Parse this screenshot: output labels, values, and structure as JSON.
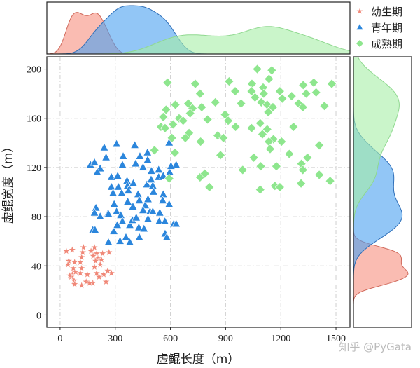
{
  "chart_data": {
    "type": "scatter",
    "xlabel": "虚鲲长度（m）",
    "ylabel": "虚鲲宽度（m）",
    "xlim": [
      -72,
      1576
    ],
    "ylim": [
      -10,
      210
    ],
    "xticks": [
      "0",
      "300",
      "600",
      "900",
      "1200",
      "1500"
    ],
    "xtick_values": [
      0,
      300,
      600,
      900,
      1200,
      1500
    ],
    "yticks": [
      "0",
      "40",
      "80",
      "120",
      "160",
      "200"
    ],
    "ytick_values": [
      0,
      40,
      80,
      120,
      160,
      200
    ],
    "grid": true,
    "grid_style": "dash-dot",
    "legend_placement": "top-right (outside)",
    "marginals": "kde (top: length, right: width)",
    "series": [
      {
        "name": "幼生期",
        "marker": "star",
        "color": "#f08878",
        "points": [
          [
            34,
            52
          ],
          [
            66,
            53
          ],
          [
            127,
            55
          ],
          [
            187,
            55
          ],
          [
            47,
            44
          ],
          [
            79,
            43
          ],
          [
            117,
            47
          ],
          [
            123,
            51
          ],
          [
            168,
            52
          ],
          [
            199,
            50
          ],
          [
            231,
            50
          ],
          [
            266,
            51
          ],
          [
            43,
            41
          ],
          [
            72,
            38
          ],
          [
            110,
            43
          ],
          [
            180,
            48
          ],
          [
            206,
            46
          ],
          [
            225,
            45
          ],
          [
            66,
            33
          ],
          [
            85,
            35
          ],
          [
            117,
            38
          ],
          [
            148,
            33
          ],
          [
            187,
            39
          ],
          [
            199,
            34
          ],
          [
            237,
            33
          ],
          [
            279,
            34
          ],
          [
            259,
            36
          ],
          [
            60,
            31
          ],
          [
            76,
            28
          ],
          [
            110,
            34
          ],
          [
            142,
            27
          ],
          [
            178,
            26
          ],
          [
            212,
            31
          ],
          [
            250,
            27
          ],
          [
            79,
            25
          ],
          [
            117,
            24
          ],
          [
            161,
            26
          ],
          [
            53,
            32
          ],
          [
            193,
            44
          ],
          [
            218,
            41
          ]
        ]
      },
      {
        "name": "青年期",
        "marker": "triangle",
        "color": "#2b86dc",
        "points": [
          [
            240,
            136
          ],
          [
            307,
            139
          ],
          [
            406,
            138
          ],
          [
            593,
            140
          ],
          [
            165,
            122
          ],
          [
            187,
            124
          ],
          [
            218,
            119
          ],
          [
            250,
            128
          ],
          [
            202,
            116
          ],
          [
            343,
            129
          ],
          [
            339,
            122
          ],
          [
            434,
            129
          ],
          [
            475,
            132
          ],
          [
            411,
            123
          ],
          [
            451,
            120
          ],
          [
            476,
            126
          ],
          [
            631,
            122
          ],
          [
            279,
            112
          ],
          [
            313,
            113
          ],
          [
            279,
            104
          ],
          [
            317,
            104
          ],
          [
            364,
            109
          ],
          [
            367,
            105
          ],
          [
            398,
            107
          ],
          [
            288,
            99
          ],
          [
            335,
            99
          ],
          [
            371,
            101
          ],
          [
            424,
            98
          ],
          [
            472,
            106
          ],
          [
            495,
            110
          ],
          [
            497,
            117
          ],
          [
            536,
            118
          ],
          [
            536,
            112
          ],
          [
            504,
            105
          ],
          [
            561,
            98
          ],
          [
            596,
            116
          ],
          [
            561,
            113
          ],
          [
            603,
            121
          ],
          [
            195,
            87
          ],
          [
            187,
            83
          ],
          [
            218,
            80
          ],
          [
            259,
            82
          ],
          [
            294,
            90
          ],
          [
            307,
            84
          ],
          [
            330,
            81
          ],
          [
            396,
            88
          ],
          [
            431,
            93
          ],
          [
            368,
            92
          ],
          [
            463,
            89
          ],
          [
            451,
            85
          ],
          [
            489,
            84
          ],
          [
            504,
            84
          ],
          [
            542,
            83
          ],
          [
            593,
            90
          ],
          [
            558,
            93
          ],
          [
            339,
            76
          ],
          [
            379,
            73
          ],
          [
            393,
            77
          ],
          [
            428,
            71
          ],
          [
            478,
            78
          ],
          [
            539,
            76
          ],
          [
            570,
            76
          ],
          [
            618,
            74
          ],
          [
            631,
            74
          ],
          [
            178,
            69
          ],
          [
            190,
            69
          ],
          [
            292,
            68
          ],
          [
            326,
            60
          ],
          [
            358,
            63
          ],
          [
            379,
            59
          ],
          [
            431,
            63
          ],
          [
            456,
            70
          ],
          [
            571,
            66
          ],
          [
            580,
            63
          ],
          [
            263,
            59
          ],
          [
            311,
            73
          ],
          [
            414,
            79
          ],
          [
            478,
            94
          ],
          [
            508,
            100
          ],
          [
            263,
            82
          ]
        ]
      },
      {
        "name": "成熟期",
        "marker": "diamond",
        "color": "#8ee68e",
        "points": [
          [
            584,
            189
          ],
          [
            735,
            188
          ],
          [
            919,
            190
          ],
          [
            1072,
            200
          ],
          [
            1151,
            199
          ],
          [
            1136,
            192
          ],
          [
            1043,
            188
          ],
          [
            1104,
            185
          ],
          [
            1195,
            182
          ],
          [
            1322,
            187
          ],
          [
            1379,
            189
          ],
          [
            1477,
            188
          ],
          [
            761,
            180
          ],
          [
            952,
            182
          ],
          [
            1041,
            182
          ],
          [
            1060,
            177
          ],
          [
            1107,
            180
          ],
          [
            1208,
            176
          ],
          [
            1259,
            178
          ],
          [
            1338,
            180
          ],
          [
            1392,
            181
          ],
          [
            627,
            171
          ],
          [
            697,
            172
          ],
          [
            720,
            168
          ],
          [
            770,
            169
          ],
          [
            844,
            173
          ],
          [
            984,
            172
          ],
          [
            1094,
            173
          ],
          [
            1126,
            171
          ],
          [
            1157,
            169
          ],
          [
            1132,
            165
          ],
          [
            1297,
            172
          ],
          [
            1320,
            169
          ],
          [
            1437,
            170
          ],
          [
            576,
            167
          ],
          [
            561,
            161
          ],
          [
            647,
            160
          ],
          [
            669,
            158
          ],
          [
            707,
            164
          ],
          [
            802,
            159
          ],
          [
            897,
            163
          ],
          [
            914,
            158
          ],
          [
            548,
            153
          ],
          [
            571,
            152
          ],
          [
            614,
            155
          ],
          [
            701,
            148
          ],
          [
            681,
            144
          ],
          [
            608,
            144
          ],
          [
            764,
            141
          ],
          [
            857,
            146
          ],
          [
            888,
            144
          ],
          [
            954,
            153
          ],
          [
            1041,
            152
          ],
          [
            1088,
            156
          ],
          [
            1126,
            151
          ],
          [
            1100,
            147
          ],
          [
            1160,
            143
          ],
          [
            1204,
            141
          ],
          [
            1135,
            141
          ],
          [
            1142,
            135
          ],
          [
            1269,
            153
          ],
          [
            1409,
            138
          ],
          [
            513,
            134
          ],
          [
            624,
            132
          ],
          [
            872,
            130
          ],
          [
            1053,
            128
          ],
          [
            1246,
            131
          ],
          [
            1345,
            128
          ],
          [
            593,
            111
          ],
          [
            761,
            112
          ],
          [
            787,
            115
          ],
          [
            812,
            104
          ],
          [
            993,
            118
          ],
          [
            1091,
            121
          ],
          [
            1176,
            121
          ],
          [
            1312,
            123
          ],
          [
            1320,
            118
          ],
          [
            1088,
            102
          ],
          [
            1168,
            105
          ],
          [
            1195,
            104
          ],
          [
            1310,
            107
          ],
          [
            1409,
            114
          ],
          [
            1468,
            109
          ]
        ]
      }
    ]
  },
  "watermark": "知乎 @PyGata"
}
